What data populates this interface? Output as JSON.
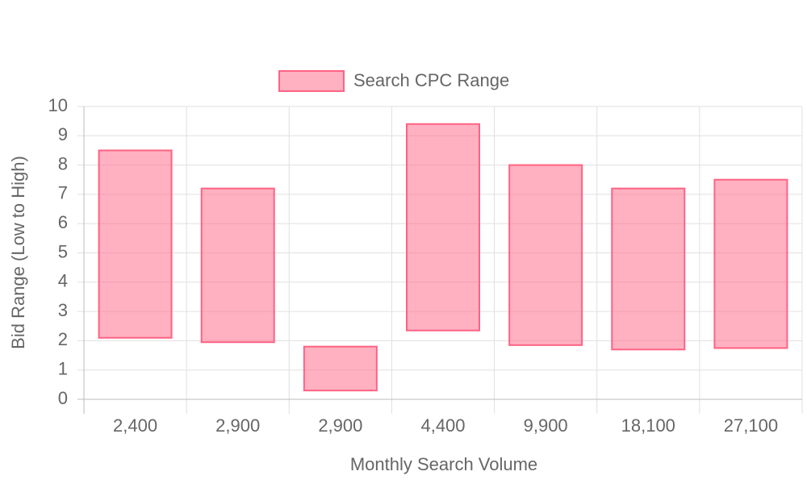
{
  "chart_data": {
    "type": "floating-bar",
    "x_label": "Monthly Search Volume",
    "y_label": "Bid Range (Low to High)",
    "categories": [
      "2,400",
      "2,900",
      "2,900",
      "4,400",
      "9,900",
      "18,100",
      "27,100"
    ],
    "series": [
      {
        "name": "Search CPC Range",
        "color": "#ff6384",
        "values": [
          [
            2.1,
            8.5
          ],
          [
            1.95,
            7.2
          ],
          [
            0.3,
            1.8
          ],
          [
            2.35,
            9.4
          ],
          [
            1.85,
            8
          ],
          [
            1.7,
            7.2
          ],
          [
            1.75,
            7.5
          ]
        ]
      }
    ],
    "ylim": [
      0,
      10
    ],
    "yticks": [
      0,
      1,
      2,
      3,
      4,
      5,
      6,
      7,
      8,
      9,
      10
    ],
    "grid": true,
    "legend": "top"
  }
}
